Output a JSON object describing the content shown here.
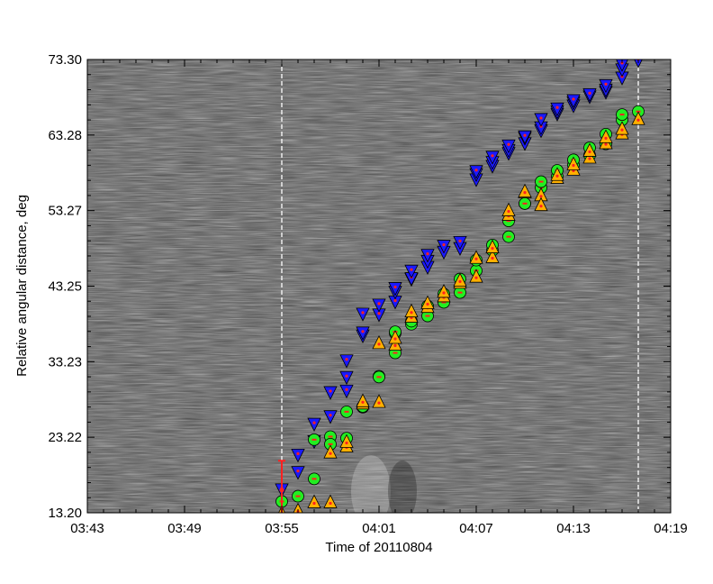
{
  "chart_data": {
    "type": "scatter",
    "background": "jmap-noise-grayscale",
    "xlabel": "Time of 20110804",
    "ylabel": "Relative angular distance, deg",
    "xlim": [
      "03:43",
      "04:19"
    ],
    "ylim": [
      13.2,
      73.3
    ],
    "xticks": [
      "03:43",
      "03:49",
      "03:55",
      "04:01",
      "04:07",
      "04:13",
      "04:19"
    ],
    "yticks": [
      "13.20",
      "23.22",
      "33.23",
      "43.25",
      "53.27",
      "63.28",
      "73.30"
    ],
    "vlines": [
      "03:55",
      "04:17"
    ],
    "colors": {
      "upper_marker": "#1a1aff",
      "middle_marker": "#22ee22",
      "lower_marker": "#ffb000",
      "marker_center": "#ff2020",
      "marker_edge": "#000000",
      "vline": "#ffffff"
    },
    "series": [
      {
        "marker": "triangle-down",
        "x": [
          "03:55",
          "03:56",
          "03:56",
          "03:57",
          "03:57",
          "03:58",
          "03:58",
          "03:59",
          "03:59",
          "03:59",
          "04:00",
          "04:00",
          "04:00",
          "04:01",
          "04:01",
          "04:02",
          "04:02",
          "04:02",
          "04:03",
          "04:03",
          "04:03",
          "04:04",
          "04:04",
          "04:04",
          "04:05",
          "04:05",
          "04:06",
          "04:06",
          "04:07",
          "04:07",
          "04:07",
          "04:08",
          "04:08",
          "04:08",
          "04:09",
          "04:09",
          "04:09",
          "04:10",
          "04:10",
          "04:10",
          "04:11",
          "04:11",
          "04:11",
          "04:12",
          "04:12",
          "04:12",
          "04:13",
          "04:13",
          "04:13",
          "04:14",
          "04:14",
          "04:15",
          "04:15",
          "04:15",
          "04:16",
          "04:16",
          "04:16",
          "04:17"
        ],
        "y": [
          16.2,
          18.5,
          20.8,
          22.6,
          24.9,
          25.9,
          29.1,
          29.3,
          31.1,
          33.3,
          36.6,
          37.0,
          39.5,
          39.4,
          40.7,
          41.1,
          42.4,
          42.9,
          44.1,
          44.2,
          45.2,
          45.7,
          46.5,
          47.3,
          47.7,
          48.5,
          48.2,
          49.0,
          57.3,
          58.0,
          58.4,
          59.1,
          59.6,
          60.3,
          60.8,
          61.2,
          61.8,
          62.1,
          62.8,
          63.0,
          63.8,
          64.2,
          65.3,
          66.0,
          66.3,
          66.7,
          67.1,
          67.5,
          67.8,
          68.3,
          68.6,
          68.9,
          69.2,
          69.8,
          70.8,
          71.9,
          72.6,
          73.1
        ]
      },
      {
        "marker": "circle",
        "x": [
          "03:55",
          "03:56",
          "03:57",
          "03:57",
          "03:58",
          "03:58",
          "03:59",
          "03:59",
          "04:00",
          "04:00",
          "04:01",
          "04:01",
          "04:02",
          "04:02",
          "04:02",
          "04:03",
          "04:03",
          "04:04",
          "04:04",
          "04:05",
          "04:05",
          "04:06",
          "04:06",
          "04:07",
          "04:07",
          "04:08",
          "04:08",
          "04:09",
          "04:09",
          "04:10",
          "04:10",
          "04:11",
          "04:11",
          "04:12",
          "04:12",
          "04:13",
          "04:13",
          "04:14",
          "04:14",
          "04:15",
          "04:15",
          "04:16",
          "04:16",
          "04:17"
        ],
        "y": [
          14.7,
          15.4,
          17.7,
          22.9,
          23.3,
          22.3,
          23.1,
          26.6,
          27.2,
          27.3,
          31.3,
          31.2,
          34.4,
          37.0,
          37.2,
          38.2,
          38.6,
          39.3,
          40.6,
          41.1,
          42.2,
          42.4,
          44.2,
          45.3,
          46.7,
          48.0,
          48.7,
          49.8,
          51.9,
          54.2,
          54.2,
          56.3,
          57.1,
          57.8,
          58.6,
          59.3,
          60.0,
          60.6,
          61.6,
          62.1,
          63.4,
          65.3,
          66.0,
          66.4
        ]
      },
      {
        "marker": "triangle-up",
        "x": [
          "03:55",
          "03:56",
          "03:57",
          "03:58",
          "03:58",
          "03:59",
          "03:59",
          "04:00",
          "04:00",
          "04:01",
          "04:01",
          "04:02",
          "04:02",
          "04:03",
          "04:03",
          "04:04",
          "04:04",
          "04:05",
          "04:05",
          "04:06",
          "04:06",
          "04:07",
          "04:07",
          "04:08",
          "04:08",
          "04:09",
          "04:09",
          "04:10",
          "04:10",
          "04:11",
          "04:11",
          "04:12",
          "04:12",
          "04:13",
          "04:13",
          "04:14",
          "04:14",
          "04:15",
          "04:15",
          "04:16",
          "04:16",
          "04:17"
        ],
        "y": [
          13.2,
          13.6,
          14.7,
          14.7,
          21.3,
          22.1,
          22.7,
          27.8,
          28.1,
          28.0,
          35.8,
          35.6,
          36.5,
          39.3,
          40.0,
          40.6,
          41.1,
          42.0,
          42.6,
          43.8,
          44.1,
          44.6,
          47.1,
          47.2,
          48.5,
          52.8,
          53.4,
          55.8,
          55.9,
          55.4,
          54.1,
          57.7,
          58.1,
          58.8,
          59.5,
          60.4,
          61.3,
          62.3,
          63.1,
          63.6,
          64.2,
          65.5
        ]
      },
      {
        "marker": "errorbar",
        "x": [
          "03:55"
        ],
        "y": [
          16.2
        ],
        "error": [
          3.9
        ]
      }
    ]
  }
}
